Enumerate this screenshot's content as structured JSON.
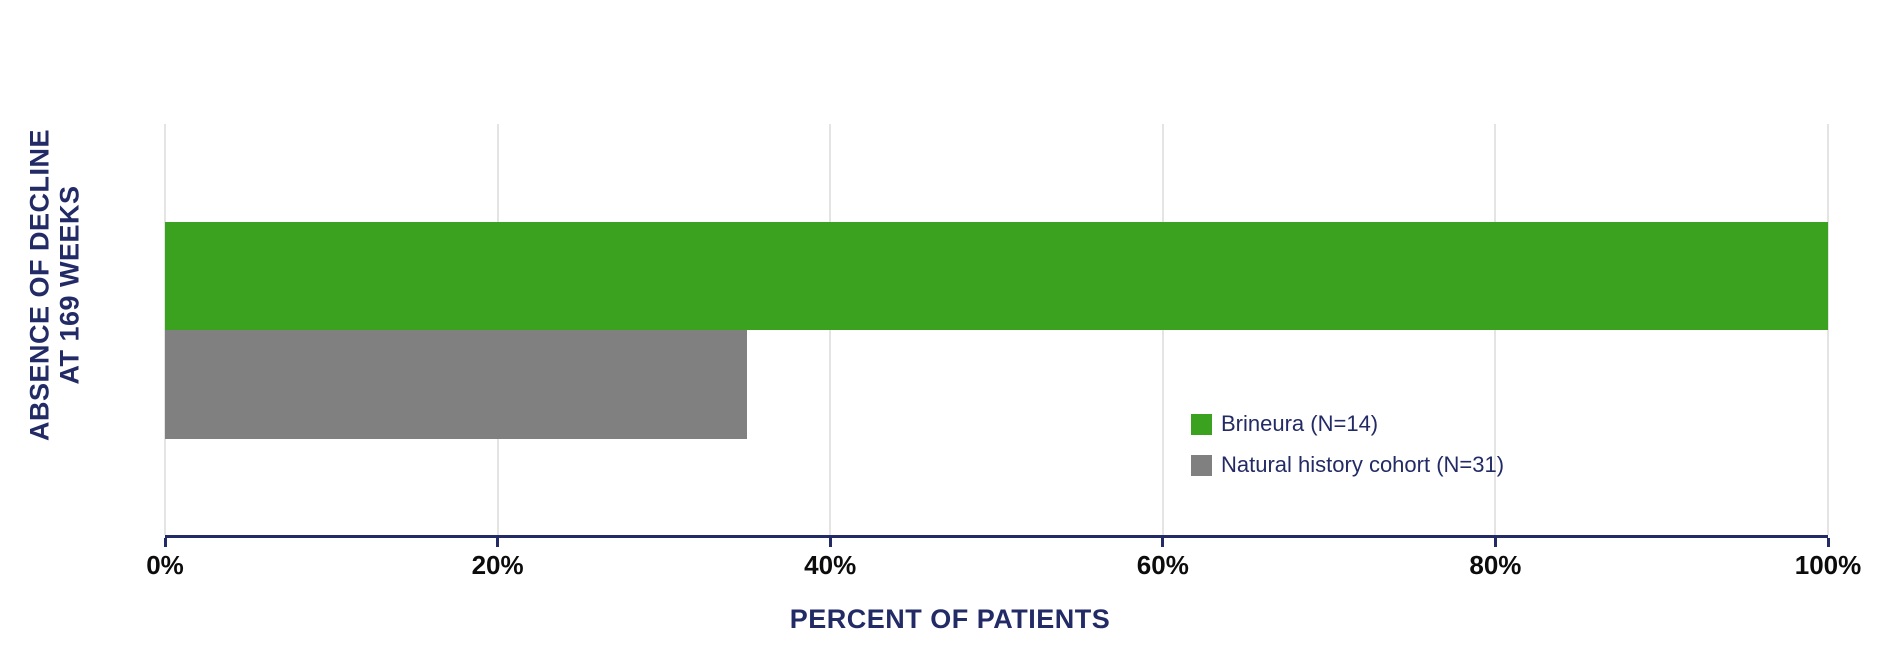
{
  "chart_data": {
    "type": "bar",
    "orientation": "horizontal",
    "title": "",
    "xlabel": "PERCENT OF PATIENTS",
    "ylabel": "ABSENCE OF DECLINE AT 169 WEEKS",
    "ylabel_lines": [
      "ABSENCE OF DECLINE",
      "AT 169 WEEKS"
    ],
    "xlim": [
      0,
      100
    ],
    "xticks": [
      "0%",
      "20%",
      "40%",
      "60%",
      "80%",
      "100%"
    ],
    "xtick_values": [
      0,
      20,
      40,
      60,
      80,
      100
    ],
    "grid": "vertical-light",
    "legend_position": "inside-right",
    "categories": [
      "Brineura (N=14)",
      "Natural history cohort (N=31)"
    ],
    "values": [
      100,
      35
    ],
    "series": [
      {
        "name": "Brineura (N=14)",
        "value": 100,
        "color": "#3aa21e"
      },
      {
        "name": "Natural history cohort (N=31)",
        "value": 35,
        "color": "#808080"
      }
    ]
  },
  "colors": {
    "axis_line": "#232b66",
    "navy_text": "#232b66",
    "tick_label_text": "#0c0c0c",
    "gridline": "#e4e4e4",
    "background": "#ffffff"
  }
}
